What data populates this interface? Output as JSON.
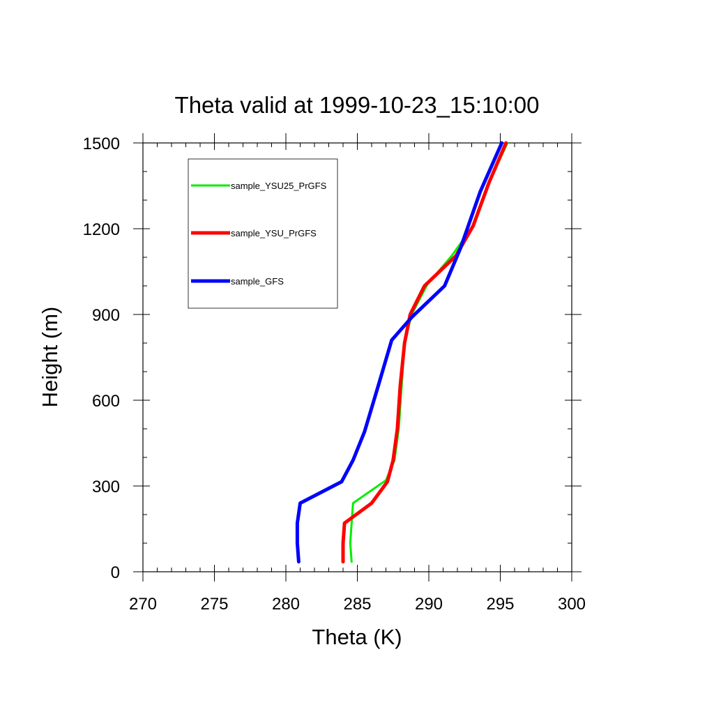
{
  "chart_data": {
    "type": "line",
    "title": "Theta valid at 1999-10-23_15:10:00",
    "xlabel": "Theta (K)",
    "ylabel": "Height (m)",
    "xlim": [
      270,
      300
    ],
    "ylim": [
      0,
      1500
    ],
    "x_ticks": [
      "270",
      "275",
      "280",
      "285",
      "290",
      "295",
      "300"
    ],
    "y_ticks": [
      "0",
      "300",
      "600",
      "900",
      "1200",
      "1500"
    ],
    "grid": false,
    "legend_position": "top-left",
    "series": [
      {
        "name": "sample_YSU25_PrGFS",
        "color": "#00ee00",
        "points": [
          [
            284.6,
            35
          ],
          [
            284.5,
            100
          ],
          [
            284.6,
            170
          ],
          [
            284.7,
            240
          ],
          [
            287.0,
            320
          ],
          [
            287.6,
            390
          ],
          [
            287.9,
            500
          ],
          [
            288.1,
            650
          ],
          [
            288.3,
            800
          ],
          [
            288.8,
            900
          ],
          [
            289.9,
            1005
          ],
          [
            291.6,
            1105
          ],
          [
            293.1,
            1210
          ],
          [
            294.2,
            1360
          ],
          [
            295.5,
            1500
          ]
        ]
      },
      {
        "name": "sample_YSU_PrGFS",
        "color": "#ff0000",
        "points": [
          [
            284.0,
            35
          ],
          [
            284.0,
            100
          ],
          [
            284.1,
            170
          ],
          [
            286.0,
            240
          ],
          [
            287.1,
            315
          ],
          [
            287.5,
            390
          ],
          [
            287.8,
            500
          ],
          [
            288.0,
            650
          ],
          [
            288.3,
            800
          ],
          [
            288.7,
            900
          ],
          [
            289.7,
            1000
          ],
          [
            291.9,
            1105
          ],
          [
            293.1,
            1210
          ],
          [
            294.2,
            1360
          ],
          [
            295.4,
            1500
          ]
        ]
      },
      {
        "name": "sample_GFS",
        "color": "#0000ff",
        "points": [
          [
            280.9,
            35
          ],
          [
            280.8,
            100
          ],
          [
            280.8,
            170
          ],
          [
            281.0,
            240
          ],
          [
            283.9,
            315
          ],
          [
            284.7,
            390
          ],
          [
            285.5,
            490
          ],
          [
            286.4,
            640
          ],
          [
            287.4,
            810
          ],
          [
            288.8,
            890
          ],
          [
            291.1,
            1000
          ],
          [
            292.2,
            1130
          ],
          [
            293.6,
            1330
          ],
          [
            295.1,
            1500
          ]
        ]
      }
    ]
  }
}
